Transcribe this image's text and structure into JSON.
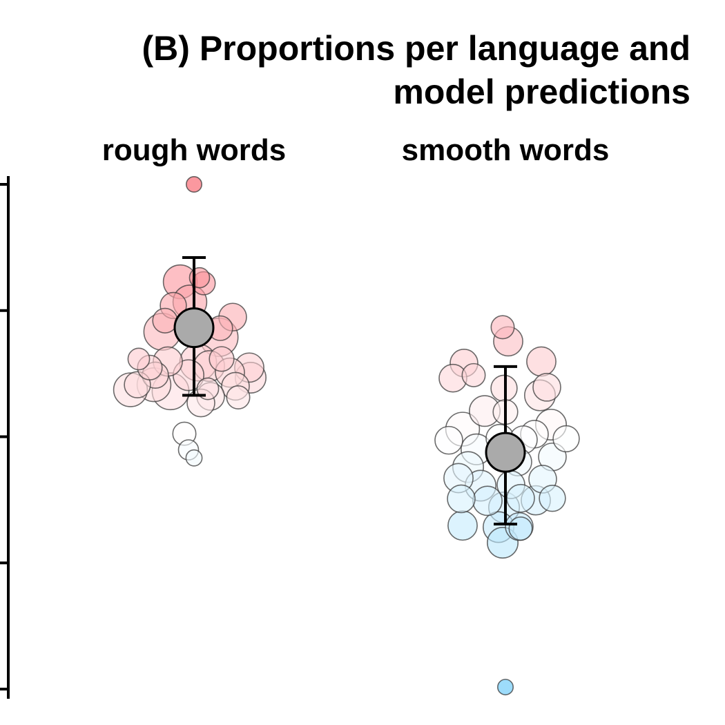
{
  "chart_data": {
    "type": "scatter",
    "title": "(B) Proportions per language and model predictions",
    "title_lines": [
      "(B) Proportions per language and",
      "model predictions"
    ],
    "facets": [
      "rough words",
      "smooth words"
    ],
    "xlabel": "",
    "ylabel": "",
    "ylim": [
      0.0,
      1.0
    ],
    "y_ticks": [
      0.0,
      0.25,
      0.5,
      0.75,
      1.0
    ],
    "grid": false,
    "legend": "none",
    "fill_scale": {
      "low": "#5BC5F8",
      "mid": "#FFFFFF",
      "high": "#F8535F",
      "midpoint": 0.5
    },
    "series": [
      {
        "facet": "rough words",
        "points": [
          {
            "x": -0.0,
            "y": 1.0,
            "size": 0.1
          },
          {
            "x": 0.04,
            "y": 0.815,
            "size": 0.25
          },
          {
            "x": -0.1,
            "y": 0.807,
            "size": 0.7
          },
          {
            "x": 0.07,
            "y": 0.804,
            "size": 0.35
          },
          {
            "x": -0.03,
            "y": 0.767,
            "size": 0.7
          },
          {
            "x": -0.15,
            "y": 0.76,
            "size": 0.45
          },
          {
            "x": 0.28,
            "y": 0.737,
            "size": 0.5
          },
          {
            "x": -0.21,
            "y": 0.73,
            "size": 0.4
          },
          {
            "x": -0.23,
            "y": 0.708,
            "size": 0.8
          },
          {
            "x": 0.19,
            "y": 0.715,
            "size": 0.4
          },
          {
            "x": 0.18,
            "y": 0.697,
            "size": 0.85
          },
          {
            "x": -0.4,
            "y": 0.654,
            "size": 0.3
          },
          {
            "x": 0.2,
            "y": 0.654,
            "size": 0.4
          },
          {
            "x": 0.03,
            "y": 0.647,
            "size": 0.8
          },
          {
            "x": -0.19,
            "y": 0.649,
            "size": 0.55
          },
          {
            "x": -0.32,
            "y": 0.637,
            "size": 0.4
          },
          {
            "x": 0.4,
            "y": 0.637,
            "size": 0.55
          },
          {
            "x": 0.11,
            "y": 0.64,
            "size": 0.6
          },
          {
            "x": -0.28,
            "y": 0.622,
            "size": 0.45
          },
          {
            "x": 0.26,
            "y": 0.627,
            "size": 0.55
          },
          {
            "x": -0.04,
            "y": 0.622,
            "size": 0.6
          },
          {
            "x": 0.41,
            "y": 0.617,
            "size": 0.6
          },
          {
            "x": -0.29,
            "y": 0.603,
            "size": 0.7
          },
          {
            "x": 0.3,
            "y": 0.6,
            "size": 0.5
          },
          {
            "x": -0.41,
            "y": 0.603,
            "size": 0.45
          },
          {
            "x": -0.46,
            "y": 0.593,
            "size": 0.7
          },
          {
            "x": 0.1,
            "y": 0.595,
            "size": 0.3
          },
          {
            "x": -0.17,
            "y": 0.59,
            "size": 0.8
          },
          {
            "x": 0.12,
            "y": 0.58,
            "size": 0.5
          },
          {
            "x": 0.32,
            "y": 0.578,
            "size": 0.35
          },
          {
            "x": 0.05,
            "y": 0.567,
            "size": 0.5
          },
          {
            "x": -0.07,
            "y": 0.506,
            "size": 0.35
          },
          {
            "x": -0.04,
            "y": 0.474,
            "size": 0.25
          },
          {
            "x": 0.0,
            "y": 0.458,
            "size": 0.12
          }
        ],
        "mean": 0.716,
        "ci": [
          0.582,
          0.855
        ]
      },
      {
        "facet": "smooth words",
        "points": [
          {
            "x": -0.02,
            "y": 0.717,
            "size": 0.35
          },
          {
            "x": 0.02,
            "y": 0.689,
            "size": 0.55
          },
          {
            "x": -0.3,
            "y": 0.646,
            "size": 0.5
          },
          {
            "x": -0.23,
            "y": 0.622,
            "size": 0.35
          },
          {
            "x": 0.26,
            "y": 0.649,
            "size": 0.55
          },
          {
            "x": -0.38,
            "y": 0.616,
            "size": 0.5
          },
          {
            "x": 0.3,
            "y": 0.598,
            "size": 0.5
          },
          {
            "x": -0.01,
            "y": 0.596,
            "size": 0.45
          },
          {
            "x": 0.25,
            "y": 0.582,
            "size": 0.6
          },
          {
            "x": -0.15,
            "y": 0.551,
            "size": 0.6
          },
          {
            "x": 0.0,
            "y": 0.549,
            "size": 0.4
          },
          {
            "x": 0.33,
            "y": 0.524,
            "size": 0.6
          },
          {
            "x": -0.31,
            "y": 0.515,
            "size": 0.7
          },
          {
            "x": 0.21,
            "y": 0.505,
            "size": 0.5
          },
          {
            "x": -0.04,
            "y": 0.497,
            "size": 0.5
          },
          {
            "x": 0.44,
            "y": 0.496,
            "size": 0.45
          },
          {
            "x": -0.41,
            "y": 0.493,
            "size": 0.5
          },
          {
            "x": 0.13,
            "y": 0.494,
            "size": 0.5
          },
          {
            "x": -0.21,
            "y": 0.475,
            "size": 0.6
          },
          {
            "x": 0.34,
            "y": 0.46,
            "size": 0.5
          },
          {
            "x": -0.02,
            "y": 0.462,
            "size": 0.6
          },
          {
            "x": -0.27,
            "y": 0.44,
            "size": 0.6
          },
          {
            "x": 0.09,
            "y": 0.45,
            "size": 0.5
          },
          {
            "x": -0.34,
            "y": 0.418,
            "size": 0.55
          },
          {
            "x": 0.27,
            "y": 0.416,
            "size": 0.5
          },
          {
            "x": -0.18,
            "y": 0.403,
            "size": 0.6
          },
          {
            "x": 0.04,
            "y": 0.405,
            "size": 0.5
          },
          {
            "x": 0.34,
            "y": 0.378,
            "size": 0.45
          },
          {
            "x": -0.13,
            "y": 0.373,
            "size": 0.55
          },
          {
            "x": 0.11,
            "y": 0.378,
            "size": 0.5
          },
          {
            "x": 0.22,
            "y": 0.374,
            "size": 0.55
          },
          {
            "x": -0.32,
            "y": 0.377,
            "size": 0.5
          },
          {
            "x": -0.01,
            "y": 0.36,
            "size": 0.6
          },
          {
            "x": -0.31,
            "y": 0.324,
            "size": 0.55
          },
          {
            "x": -0.05,
            "y": 0.321,
            "size": 0.6
          },
          {
            "x": 0.1,
            "y": 0.322,
            "size": 0.5
          },
          {
            "x": 0.11,
            "y": 0.318,
            "size": 0.35
          },
          {
            "x": -0.02,
            "y": 0.29,
            "size": 0.6
          },
          {
            "x": 0.0,
            "y": 0.004,
            "size": 0.1
          }
        ],
        "mean": 0.469,
        "ci": [
          0.327,
          0.639
        ]
      }
    ]
  }
}
